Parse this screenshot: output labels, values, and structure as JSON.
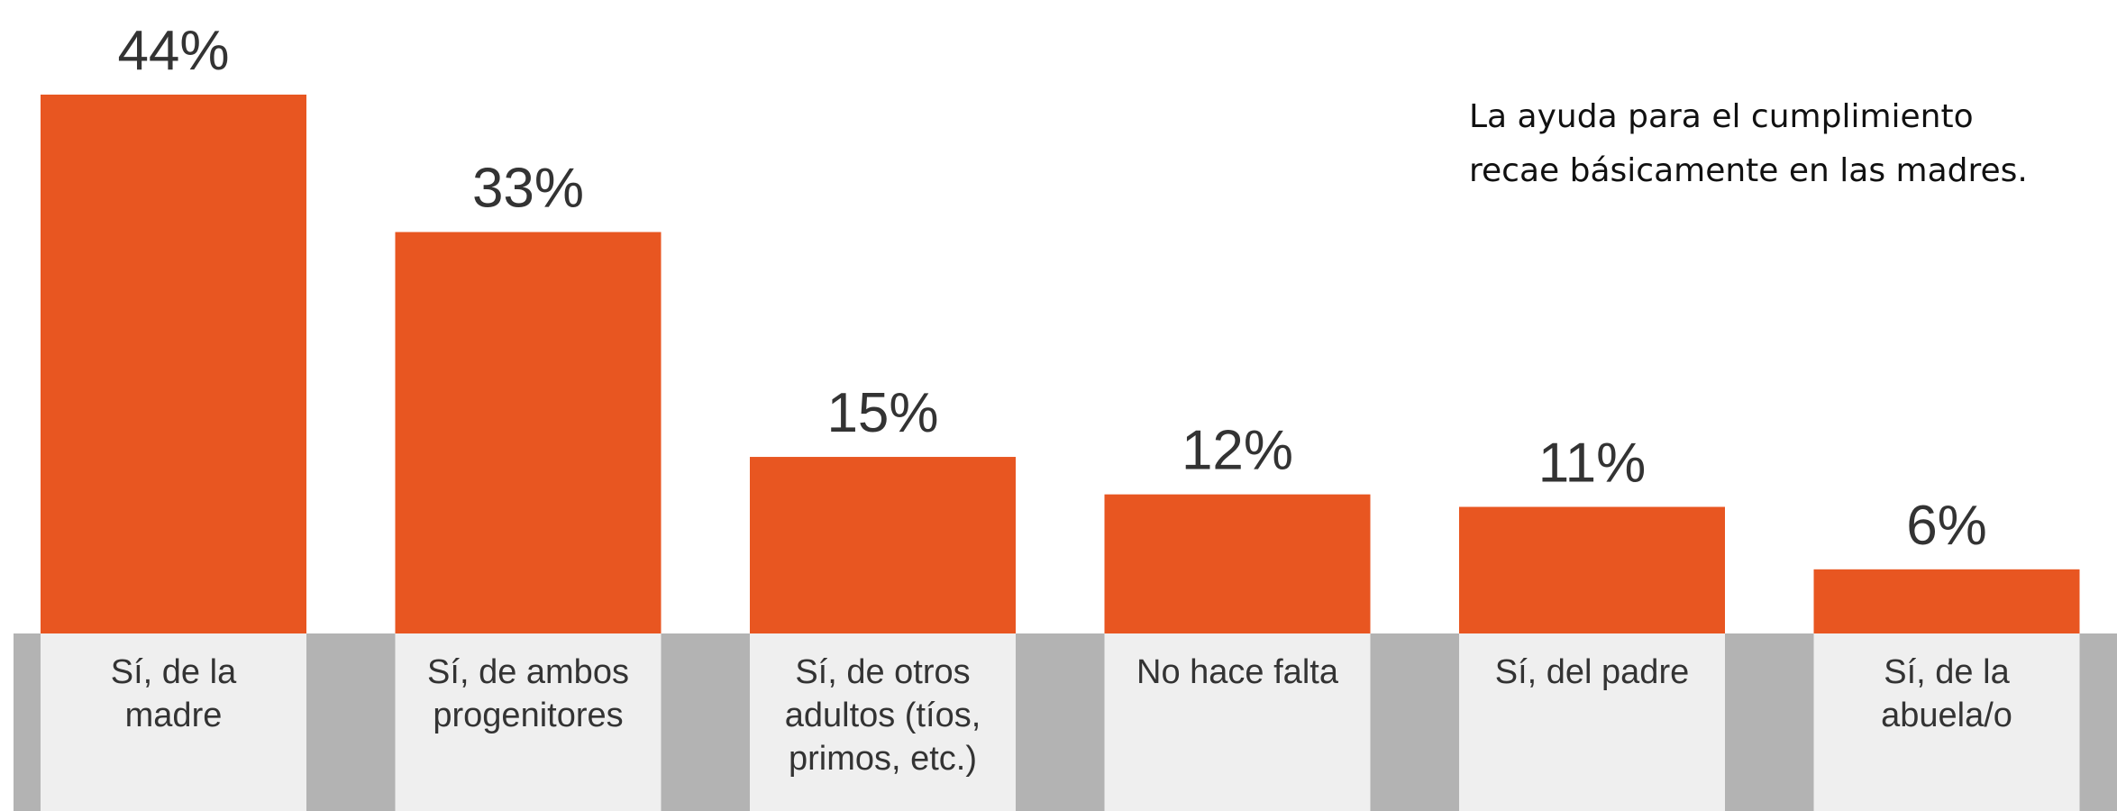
{
  "chart_data": {
    "type": "bar",
    "annotation": "La ayuda para el cumplimiento recae básicamente en las madres.",
    "categories": [
      "Sí, de la madre",
      "Sí, de ambos progenitores",
      "Sí, de otros adultos (tíos, primos, etc.)",
      "No hace falta",
      "Sí, del padre",
      "Sí, de la abuela/o"
    ],
    "values": [
      44,
      33,
      15,
      12,
      11,
      6
    ],
    "value_labels": [
      "44%",
      "33%",
      "15%",
      "12%",
      "11%",
      "6%"
    ],
    "color": "#e85621"
  }
}
